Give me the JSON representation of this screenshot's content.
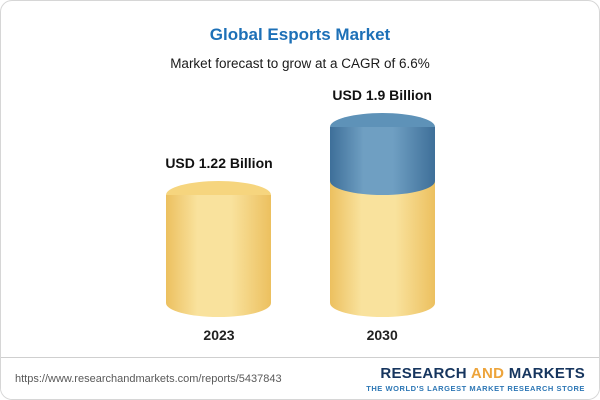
{
  "chart_data": {
    "type": "bar",
    "variant": "3d-cylinder",
    "title": "Global Esports Market",
    "subtitle": "Market forecast to grow at a CAGR of 6.6%",
    "cagr": "6.6%",
    "unit": "USD Billion",
    "categories": [
      "2023",
      "2030"
    ],
    "values": [
      1.22,
      1.9
    ],
    "value_labels": [
      "USD 1.22 Billion",
      "USD 1.9 Billion"
    ],
    "legend_position": "none",
    "grid": false,
    "colors": {
      "bar_2023": "#f6d57e",
      "bar_2030_base": "#f6d57e",
      "bar_2030_growth": "#4d80a8",
      "title": "#1d70b7"
    }
  },
  "footer": {
    "url": "https://www.researchandmarkets.com/reports/5437843",
    "logo": {
      "word1": "RESEARCH",
      "word2": "AND",
      "word3": "MARKETS",
      "tagline": "THE WORLD'S LARGEST MARKET RESEARCH STORE"
    }
  }
}
